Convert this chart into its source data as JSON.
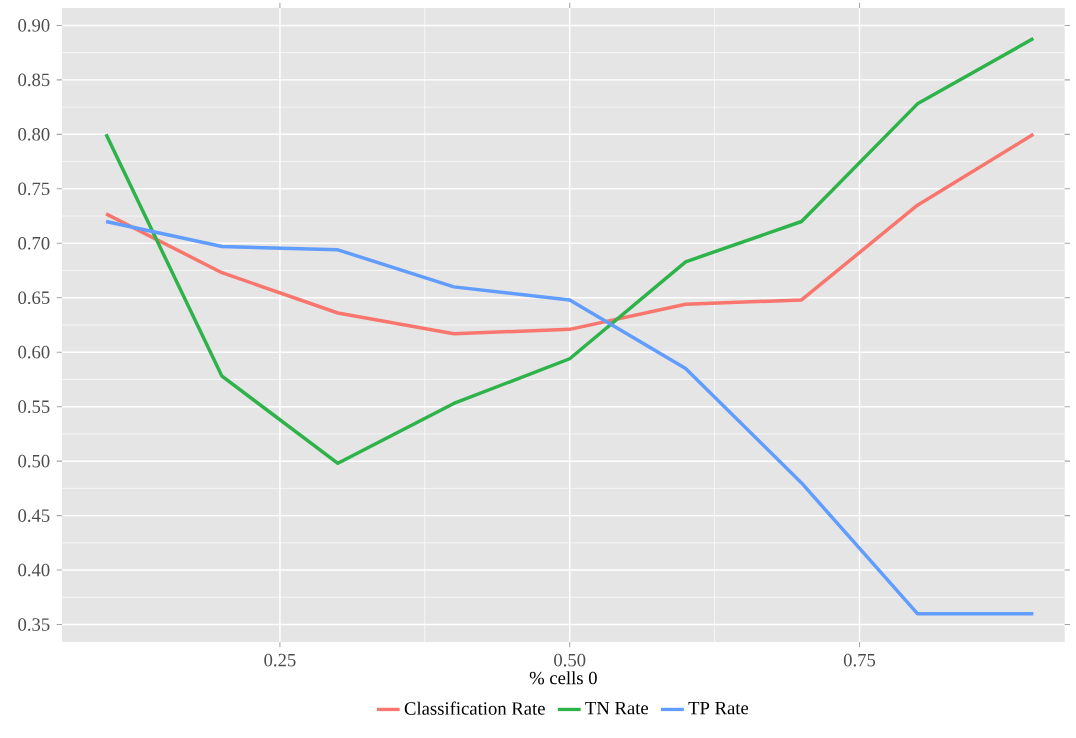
{
  "chart_data": {
    "type": "line",
    "xlabel": "% cells 0",
    "x": [
      0.1,
      0.2,
      0.3,
      0.4,
      0.5,
      0.6,
      0.7,
      0.8,
      0.9
    ],
    "series": [
      {
        "name": "Classification Rate",
        "color": "#f8766d",
        "values": [
          0.727,
          0.673,
          0.636,
          0.617,
          0.621,
          0.644,
          0.648,
          0.735,
          0.8
        ]
      },
      {
        "name": "TN Rate",
        "color": "#2db34a",
        "values": [
          0.8,
          0.578,
          0.498,
          0.553,
          0.594,
          0.683,
          0.72,
          0.828,
          0.888
        ]
      },
      {
        "name": "TP Rate",
        "color": "#619cff",
        "values": [
          0.72,
          0.697,
          0.694,
          0.66,
          0.648,
          0.585,
          0.48,
          0.36,
          0.36
        ]
      }
    ],
    "xlim": [
      0.062,
      0.927
    ],
    "ylim": [
      0.334,
      0.916
    ],
    "xticks": [
      {
        "value": 0.25,
        "label": "0.25"
      },
      {
        "value": 0.5,
        "label": "0.50"
      },
      {
        "value": 0.75,
        "label": "0.75"
      }
    ],
    "yticks": [
      {
        "value": 0.35,
        "label": "0.35"
      },
      {
        "value": 0.4,
        "label": "0.40"
      },
      {
        "value": 0.45,
        "label": "0.45"
      },
      {
        "value": 0.5,
        "label": "0.50"
      },
      {
        "value": 0.55,
        "label": "0.55"
      },
      {
        "value": 0.6,
        "label": "0.60"
      },
      {
        "value": 0.65,
        "label": "0.65"
      },
      {
        "value": 0.7,
        "label": "0.70"
      },
      {
        "value": 0.75,
        "label": "0.75"
      },
      {
        "value": 0.8,
        "label": "0.80"
      },
      {
        "value": 0.85,
        "label": "0.85"
      },
      {
        "value": 0.9,
        "label": "0.90"
      }
    ],
    "grid": true,
    "legend": "bottom"
  }
}
